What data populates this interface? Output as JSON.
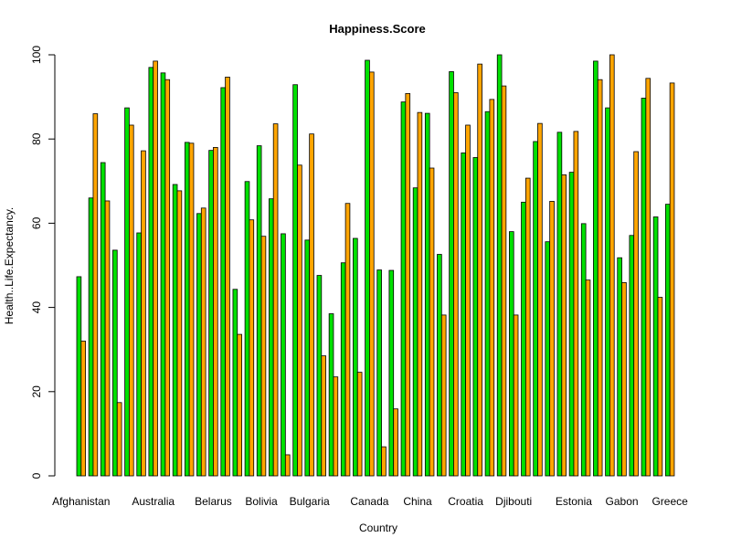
{
  "chart_data": {
    "type": "bar",
    "title": "Happiness.Score",
    "xlabel": "Country",
    "ylabel": "Health..Life.Expectancy.",
    "ylim": [
      0,
      100
    ],
    "yticks": [
      0,
      20,
      40,
      60,
      80,
      100
    ],
    "grid": false,
    "legend": "none",
    "colors": {
      "series1": "#00e000",
      "series2": "#ffa500",
      "border": "#000000"
    },
    "x_tick_labels": [
      {
        "label": "Afghanistan",
        "pair_index": 0
      },
      {
        "label": "Australia",
        "pair_index": 6
      },
      {
        "label": "Belarus",
        "pair_index": 11
      },
      {
        "label": "Bolivia",
        "pair_index": 15
      },
      {
        "label": "Bulgaria",
        "pair_index": 19
      },
      {
        "label": "Canada",
        "pair_index": 24
      },
      {
        "label": "China",
        "pair_index": 28
      },
      {
        "label": "Croatia",
        "pair_index": 32
      },
      {
        "label": "Djibouti",
        "pair_index": 36
      },
      {
        "label": "Estonia",
        "pair_index": 41
      },
      {
        "label": "Gabon",
        "pair_index": 45
      },
      {
        "label": "Greece",
        "pair_index": 49
      }
    ],
    "series": [
      {
        "values": [
          47.3,
          66,
          74.4,
          53.6,
          87.4,
          57.7,
          97,
          95.7,
          69.2,
          79.2,
          62.3,
          77.3,
          92.2,
          44.3,
          69.9,
          78.4,
          65.8,
          57.5,
          92.9,
          56,
          47.6,
          38.5,
          50.6,
          56.4,
          98.7,
          48.9,
          48.8,
          88.8,
          68.4,
          86.1,
          52.6,
          96,
          76.7,
          75.6,
          86.5,
          100,
          58,
          65,
          79.4,
          55.6,
          81.6,
          72.1,
          59.9,
          98.5,
          87.4,
          51.8,
          57.1,
          89.7,
          61.5,
          64.5
        ]
      },
      {
        "values": [
          32,
          86,
          65.3,
          17.4,
          83.3,
          77.2,
          98.5,
          94.1,
          67.7,
          79,
          63.6,
          78,
          94.7,
          33.6,
          60.8,
          56.9,
          83.6,
          5,
          73.8,
          81.2,
          28.5,
          23.5,
          64.7,
          24.6,
          95.9,
          6.9,
          15.9,
          90.8,
          86.3,
          73.1,
          38.2,
          91,
          83.3,
          97.8,
          89.4,
          92.6,
          38.2,
          70.7,
          83.7,
          65.2,
          71.5,
          81.8,
          46.5,
          94.1,
          100,
          45.9,
          77,
          94.4,
          42.4,
          93.3
        ]
      }
    ]
  }
}
